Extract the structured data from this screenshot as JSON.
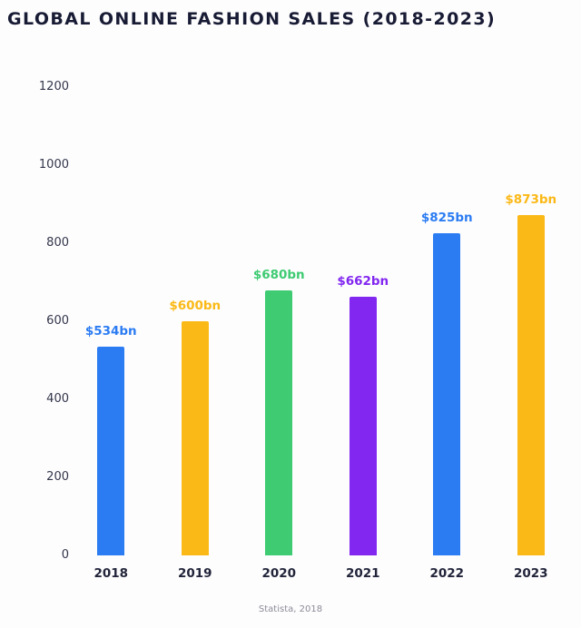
{
  "title": "GLOBAL ONLINE FASHION SALES (2018-2023)",
  "source": "Statista, 2018",
  "chart_data": {
    "type": "bar",
    "title": "GLOBAL ONLINE FASHION SALES (2018-2023)",
    "categories": [
      "2018",
      "2019",
      "2020",
      "2021",
      "2022",
      "2023"
    ],
    "values": [
      534,
      600,
      680,
      662,
      825,
      873
    ],
    "value_labels": [
      "$534bn",
      "$600bn",
      "$680bn",
      "$662bn",
      "$825bn",
      "$873bn"
    ],
    "bar_colors": [
      "#2b7cf2",
      "#fbb917",
      "#3ecb72",
      "#8227f0",
      "#2b7cf2",
      "#fbb917"
    ],
    "xlabel": "",
    "ylabel": "",
    "ylim": [
      0,
      1200
    ],
    "yticks": [
      0,
      200,
      400,
      600,
      800,
      1000,
      1200
    ],
    "grid": false,
    "legend": "none",
    "source": "Statista, 2018"
  }
}
